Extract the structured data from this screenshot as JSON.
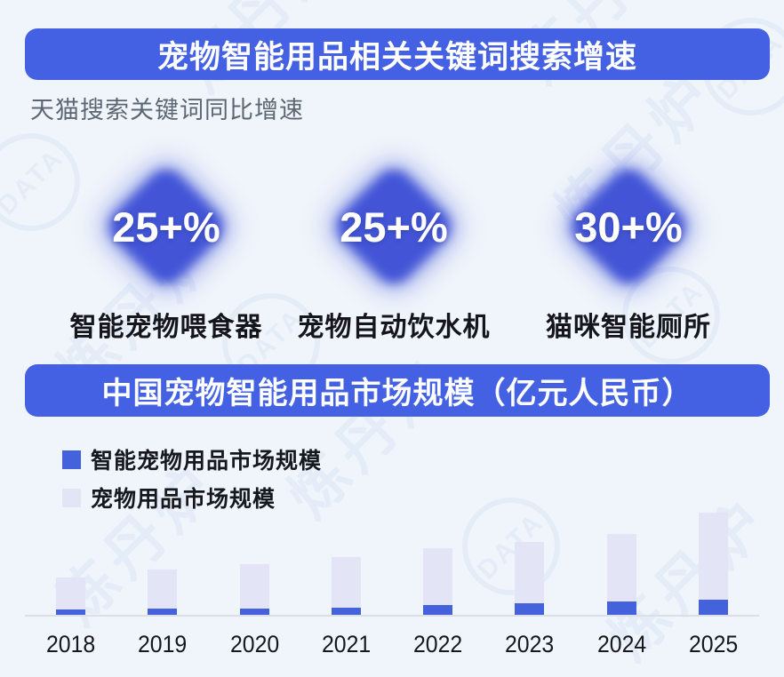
{
  "page": {
    "background": "#f0f5fb"
  },
  "header": {
    "title": "宠物智能用品相关关键词搜索增速",
    "bg": "#4361e2"
  },
  "subtitle": "天猫搜索关键词同比增速",
  "diamond_color": "#4355d6",
  "stats": [
    {
      "value": "25+%",
      "label": "智能宠物喂食器"
    },
    {
      "value": "25+%",
      "label": "宠物自动饮水机"
    },
    {
      "value": "30+%",
      "label": "猫咪智能厕所"
    }
  ],
  "section2": {
    "title": "中国宠物智能用品市场规模（亿元人民币）",
    "bg": "#4361e2"
  },
  "legend": {
    "items": [
      {
        "label": "智能宠物用品市场规模",
        "color": "#4562dd"
      },
      {
        "label": "宠物用品市场规模",
        "color": "#e3e5f7"
      }
    ]
  },
  "chart_data": {
    "type": "bar",
    "stacked": true,
    "title": "中国宠物智能用品市场规模（亿元人民币）",
    "xlabel": "",
    "ylabel": "",
    "units": "亿元人民币 (bars carry no numeric labels; values are relative estimates from bar heights)",
    "categories": [
      "2018",
      "2019",
      "2020",
      "2021",
      "2022",
      "2023",
      "2024",
      "2025"
    ],
    "series": [
      {
        "name": "智能宠物用品市场规模",
        "color": "#4562dd",
        "values": [
          6,
          7,
          7,
          8,
          11,
          13,
          15,
          17
        ]
      },
      {
        "name": "宠物用品市场规模",
        "color": "#e3e5f7",
        "values": [
          36,
          44,
          50,
          57,
          64,
          69,
          76,
          98
        ]
      }
    ],
    "totals": [
      42,
      51,
      57,
      65,
      75,
      82,
      91,
      115
    ],
    "ylim": [
      0,
      120
    ],
    "grid": false,
    "legend_position": "top-left"
  },
  "watermark": {
    "text": "炼丹炉",
    "brand": "DATA"
  }
}
